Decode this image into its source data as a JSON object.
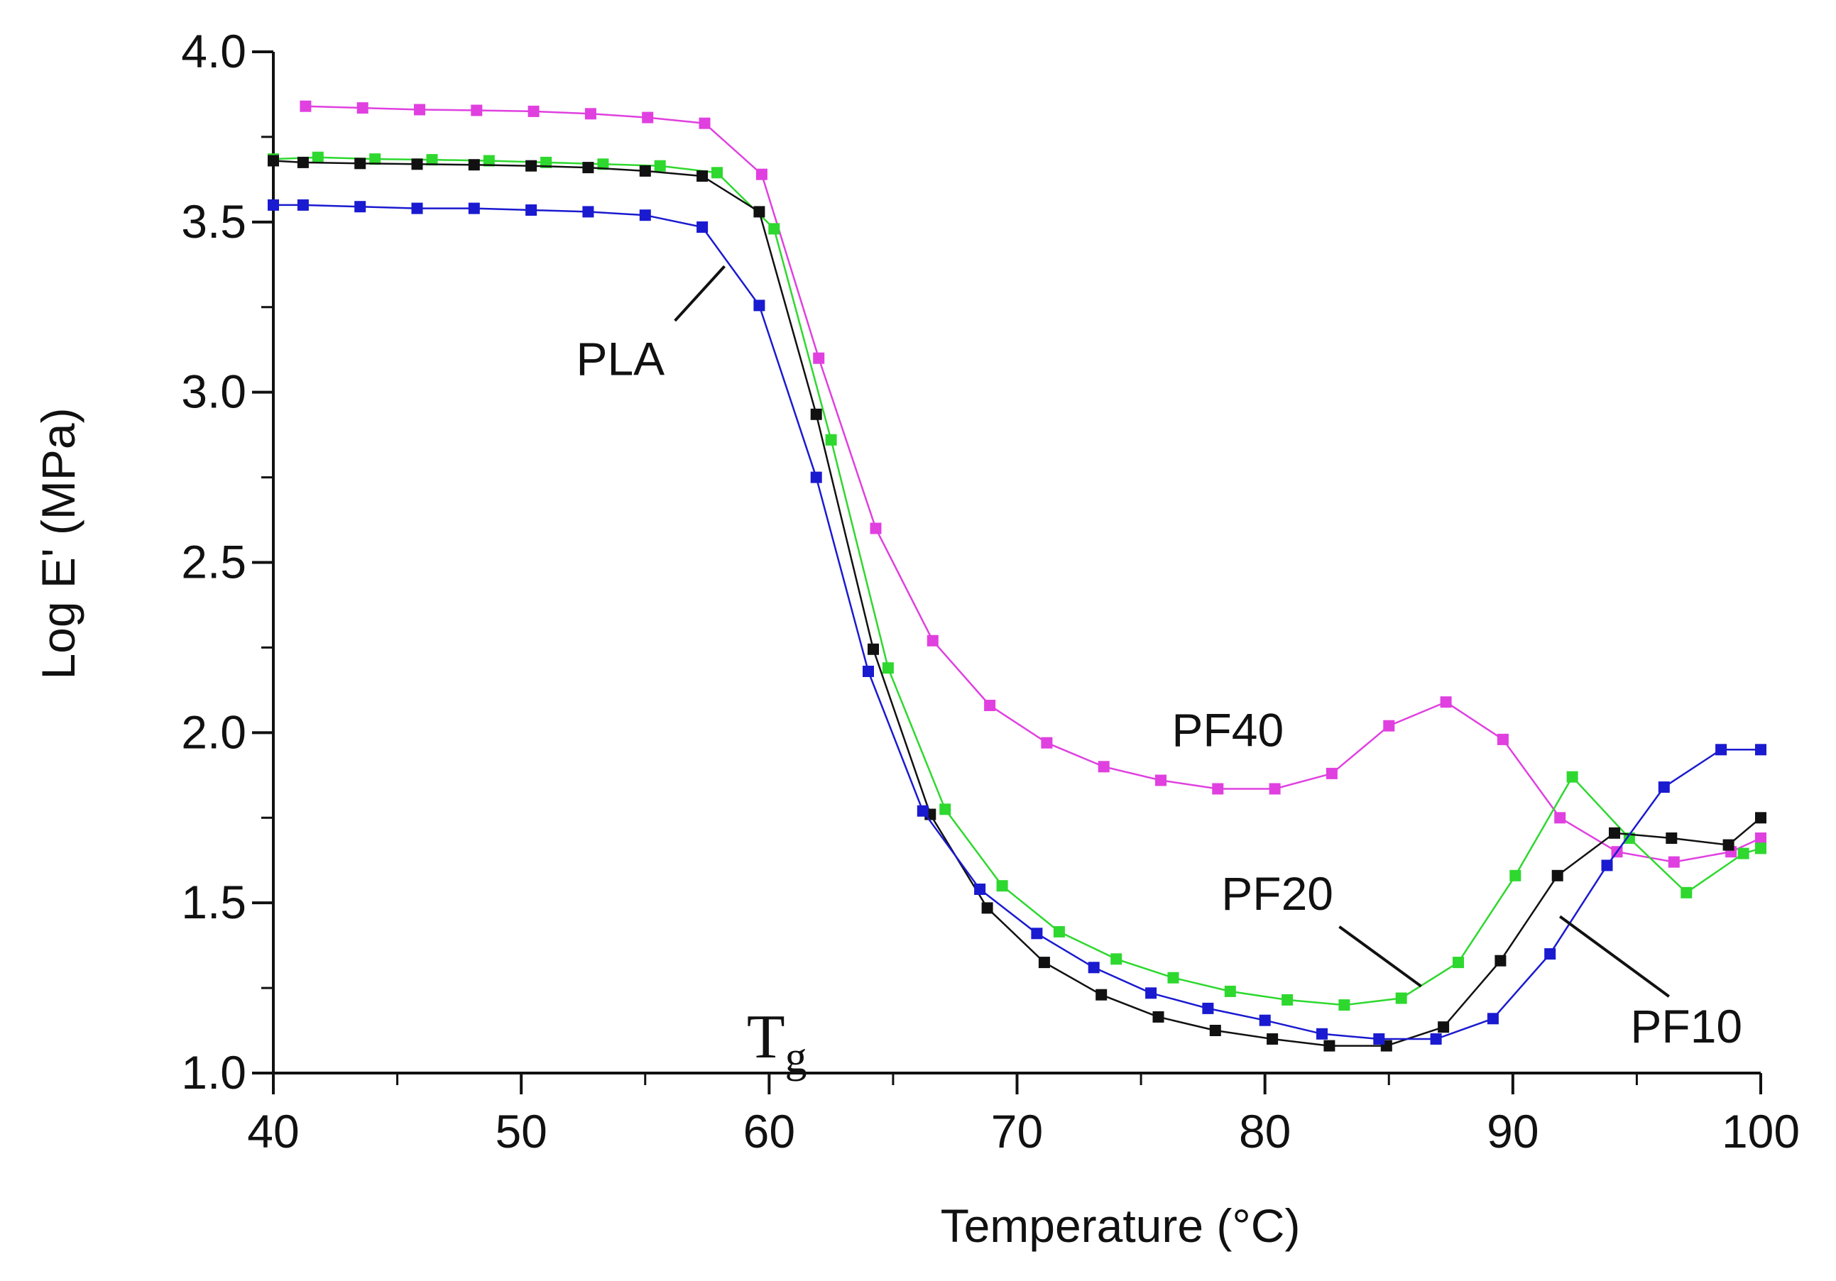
{
  "chart_data": {
    "type": "line",
    "title": "",
    "xlabel": "Temperature (°C)",
    "ylabel": "Log E' (MPa)",
    "xlim": [
      40,
      100
    ],
    "ylim": [
      1.0,
      4.0
    ],
    "x_ticks": [
      40,
      50,
      60,
      70,
      80,
      90,
      100
    ],
    "x_tick_labels": [
      "40",
      "50",
      "60",
      "70",
      "80",
      "90",
      "100"
    ],
    "y_ticks": [
      1.0,
      1.5,
      2.0,
      2.5,
      3.0,
      3.5,
      4.0
    ],
    "y_tick_labels": [
      "1.0",
      "1.5",
      "2.0",
      "2.5",
      "3.0",
      "3.5",
      "4.0"
    ],
    "grid": false,
    "legend": "inline labels",
    "series": [
      {
        "name": "PF40",
        "color": "#e040e0",
        "points": [
          [
            41.3,
            3.84
          ],
          [
            43.6,
            3.835
          ],
          [
            45.9,
            3.83
          ],
          [
            48.2,
            3.828
          ],
          [
            50.5,
            3.825
          ],
          [
            52.8,
            3.818
          ],
          [
            55.1,
            3.807
          ],
          [
            57.4,
            3.79
          ],
          [
            59.7,
            3.64
          ],
          [
            62.0,
            3.1
          ],
          [
            64.3,
            2.6
          ],
          [
            66.6,
            2.27
          ],
          [
            68.9,
            2.08
          ],
          [
            71.2,
            1.97
          ],
          [
            73.5,
            1.9
          ],
          [
            75.8,
            1.86
          ],
          [
            78.1,
            1.835
          ],
          [
            80.4,
            1.835
          ],
          [
            82.7,
            1.88
          ],
          [
            85.0,
            2.02
          ],
          [
            87.3,
            2.09
          ],
          [
            89.6,
            1.98
          ],
          [
            91.9,
            1.75
          ],
          [
            94.2,
            1.65
          ],
          [
            96.5,
            1.62
          ],
          [
            98.8,
            1.65
          ],
          [
            100.0,
            1.69
          ]
        ]
      },
      {
        "name": "PF20",
        "color": "#2ed82e",
        "points": [
          [
            40.0,
            3.685
          ],
          [
            41.8,
            3.69
          ],
          [
            44.1,
            3.685
          ],
          [
            46.4,
            3.683
          ],
          [
            48.7,
            3.68
          ],
          [
            51.0,
            3.675
          ],
          [
            53.3,
            3.67
          ],
          [
            55.6,
            3.665
          ],
          [
            57.9,
            3.645
          ],
          [
            60.2,
            3.48
          ],
          [
            62.5,
            2.86
          ],
          [
            64.8,
            2.19
          ],
          [
            67.1,
            1.775
          ],
          [
            69.4,
            1.55
          ],
          [
            71.7,
            1.415
          ],
          [
            74.0,
            1.335
          ],
          [
            76.3,
            1.28
          ],
          [
            78.6,
            1.24
          ],
          [
            80.9,
            1.215
          ],
          [
            83.2,
            1.2
          ],
          [
            85.5,
            1.22
          ],
          [
            87.8,
            1.325
          ],
          [
            90.1,
            1.58
          ],
          [
            92.4,
            1.87
          ],
          [
            94.7,
            1.69
          ],
          [
            97.0,
            1.53
          ],
          [
            99.3,
            1.645
          ],
          [
            100.0,
            1.66
          ]
        ]
      },
      {
        "name": "PF10",
        "color": "#111111",
        "points": [
          [
            40.0,
            3.68
          ],
          [
            41.2,
            3.675
          ],
          [
            43.5,
            3.672
          ],
          [
            45.8,
            3.67
          ],
          [
            48.1,
            3.668
          ],
          [
            50.4,
            3.665
          ],
          [
            52.7,
            3.66
          ],
          [
            55.0,
            3.65
          ],
          [
            57.3,
            3.635
          ],
          [
            59.6,
            3.53
          ],
          [
            61.9,
            2.935
          ],
          [
            64.2,
            2.245
          ],
          [
            66.5,
            1.76
          ],
          [
            68.8,
            1.485
          ],
          [
            71.1,
            1.325
          ],
          [
            73.4,
            1.23
          ],
          [
            75.7,
            1.165
          ],
          [
            78.0,
            1.125
          ],
          [
            80.3,
            1.1
          ],
          [
            82.6,
            1.08
          ],
          [
            84.9,
            1.08
          ],
          [
            87.2,
            1.135
          ],
          [
            89.5,
            1.33
          ],
          [
            91.8,
            1.58
          ],
          [
            94.1,
            1.705
          ],
          [
            96.4,
            1.69
          ],
          [
            98.7,
            1.67
          ],
          [
            100.0,
            1.75
          ]
        ]
      },
      {
        "name": "PLA",
        "color": "#1a1ad0",
        "points": [
          [
            40.0,
            3.55
          ],
          [
            41.2,
            3.55
          ],
          [
            43.5,
            3.545
          ],
          [
            45.8,
            3.54
          ],
          [
            48.1,
            3.54
          ],
          [
            50.4,
            3.535
          ],
          [
            52.7,
            3.53
          ],
          [
            55.0,
            3.52
          ],
          [
            57.3,
            3.485
          ],
          [
            59.6,
            3.255
          ],
          [
            61.9,
            2.75
          ],
          [
            64.0,
            2.18
          ],
          [
            66.2,
            1.77
          ],
          [
            68.5,
            1.54
          ],
          [
            70.8,
            1.41
          ],
          [
            73.1,
            1.31
          ],
          [
            75.4,
            1.235
          ],
          [
            77.7,
            1.19
          ],
          [
            80.0,
            1.155
          ],
          [
            82.3,
            1.115
          ],
          [
            84.6,
            1.1
          ],
          [
            86.9,
            1.1
          ],
          [
            89.2,
            1.16
          ],
          [
            91.5,
            1.35
          ],
          [
            93.8,
            1.61
          ],
          [
            96.1,
            1.84
          ],
          [
            98.4,
            1.95
          ],
          [
            100.0,
            1.95
          ]
        ]
      }
    ],
    "annotations": [
      {
        "text": "PLA",
        "leader_from": [
          58.2,
          3.37
        ],
        "leader_to": [
          56.2,
          3.21
        ],
        "label_at": [
          54.0,
          3.05
        ]
      },
      {
        "text": "PF40",
        "label_at": [
          78.5,
          1.96
        ]
      },
      {
        "text": "PF20",
        "leader_from": [
          86.3,
          1.255
        ],
        "leader_to": [
          83.0,
          1.43
        ],
        "label_at": [
          80.5,
          1.48
        ]
      },
      {
        "text": "PF10",
        "leader_from": [
          91.9,
          1.46
        ],
        "leader_to": [
          96.3,
          1.225
        ],
        "label_at": [
          97.0,
          1.09
        ]
      }
    ],
    "tg_label": {
      "main": "T",
      "sub": "g",
      "at": [
        59.1,
        1.0
      ]
    }
  }
}
